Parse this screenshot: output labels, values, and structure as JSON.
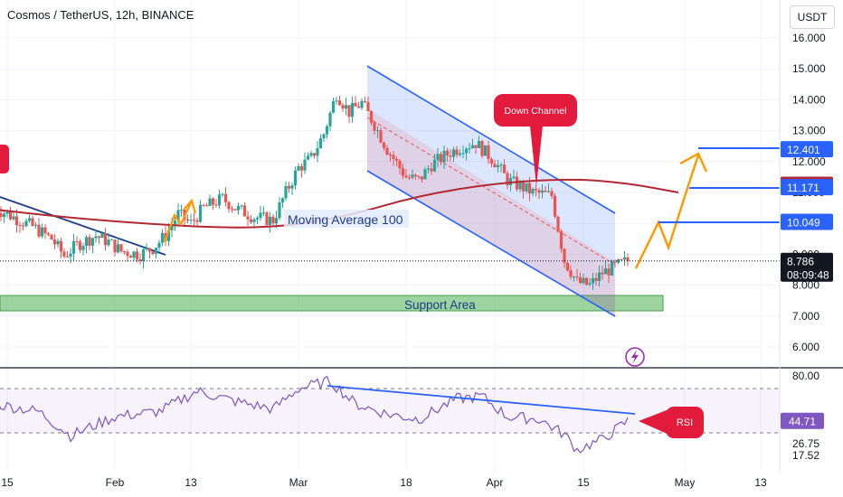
{
  "header": {
    "symbol_title": "Cosmos / TetherUS, 12h, BINANCE",
    "currency_button": "USDT"
  },
  "colors": {
    "up_candle": "#26a69a",
    "down_candle": "#ef5350",
    "moving_average": "#b22833",
    "channel": "#2962ff",
    "projection": "#ff9800",
    "support": "#4caf50",
    "rsi_line": "#7e57c2"
  },
  "annotations": {
    "down_channel_label": "Down Channel",
    "moving_average_label": "Moving Average 100",
    "support_label": "Support Area",
    "rsi_label": "RSI"
  },
  "chart_data": {
    "type": "candlestick",
    "price_axis": {
      "ticks": [
        "6.000",
        "7.000",
        "8.000",
        "9.000",
        "10.000",
        "11.000",
        "12.000",
        "13.000",
        "14.000",
        "15.000",
        "16.000"
      ],
      "tick_values": [
        6,
        7,
        8,
        9,
        10,
        11,
        12,
        13,
        14,
        15,
        16
      ],
      "range": [
        5.3,
        16.4
      ]
    },
    "rsi_axis": {
      "ticks": [
        "17.52",
        "26.75",
        "80.00"
      ],
      "tick_values": [
        17.52,
        26.75,
        80
      ],
      "range": [
        12,
        85
      ],
      "levels": [
        70,
        30
      ]
    },
    "time_axis": {
      "labels": [
        "15",
        "Feb",
        "13",
        "Mar",
        "18",
        "Apr",
        "15",
        "May",
        "13"
      ],
      "dates": [
        "2024-01-15",
        "2024-02-01",
        "2024-02-13",
        "2024-03-01",
        "2024-03-18",
        "2024-04-01",
        "2024-04-15",
        "2024-05-01",
        "2024-05-13"
      ]
    },
    "price_labels": [
      {
        "text": "12.401",
        "value": 12.401,
        "style": "blue"
      },
      {
        "text": "11.247",
        "value": 11.247,
        "style": "red"
      },
      {
        "text": "11.171",
        "value": 11.171,
        "style": "blue"
      },
      {
        "text": "10.049",
        "value": 10.049,
        "style": "blue"
      },
      {
        "text": "8.786",
        "value": 8.786,
        "style": "dark"
      }
    ],
    "countdown": "08:09:48",
    "rsi_label_value": "44.71",
    "candles_close_path": [
      [
        "2024-01-13",
        10.5
      ],
      [
        "2024-01-16",
        10.2
      ],
      [
        "2024-01-19",
        9.9
      ],
      [
        "2024-01-22",
        9.5
      ],
      [
        "2024-01-24",
        8.95
      ],
      [
        "2024-01-26",
        9.3
      ],
      [
        "2024-01-29",
        9.6
      ],
      [
        "2024-01-31",
        9.4
      ],
      [
        "2024-02-02",
        9.1
      ],
      [
        "2024-02-05",
        9.0
      ],
      [
        "2024-02-07",
        9.2
      ],
      [
        "2024-02-09",
        9.6
      ],
      [
        "2024-02-11",
        10.3
      ],
      [
        "2024-02-13",
        10.0
      ],
      [
        "2024-02-15",
        10.5
      ],
      [
        "2024-02-18",
        10.8
      ],
      [
        "2024-02-20",
        10.5
      ],
      [
        "2024-02-23",
        10.2
      ],
      [
        "2024-02-26",
        10.1
      ],
      [
        "2024-02-28",
        11.0
      ],
      [
        "2024-03-01",
        11.8
      ],
      [
        "2024-03-03",
        12.1
      ],
      [
        "2024-03-05",
        12.9
      ],
      [
        "2024-03-07",
        14.2
      ],
      [
        "2024-03-09",
        13.6
      ],
      [
        "2024-03-11",
        13.9
      ],
      [
        "2024-03-13",
        13.2
      ],
      [
        "2024-03-15",
        12.4
      ],
      [
        "2024-03-18",
        11.5
      ],
      [
        "2024-03-20",
        11.4
      ],
      [
        "2024-03-22",
        11.9
      ],
      [
        "2024-03-25",
        12.3
      ],
      [
        "2024-03-27",
        12.5
      ],
      [
        "2024-03-29",
        12.6
      ],
      [
        "2024-04-01",
        12.0
      ],
      [
        "2024-04-03",
        11.4
      ],
      [
        "2024-04-05",
        11.2
      ],
      [
        "2024-04-07",
        11.0
      ],
      [
        "2024-04-10",
        10.9
      ],
      [
        "2024-04-12",
        8.8
      ],
      [
        "2024-04-14",
        8.1
      ],
      [
        "2024-04-16",
        8.0
      ],
      [
        "2024-04-18",
        8.4
      ],
      [
        "2024-04-20",
        8.6
      ],
      [
        "2024-04-22",
        8.79
      ]
    ],
    "moving_average_100": [
      [
        "2024-01-13",
        10.45
      ],
      [
        "2024-01-24",
        10.2
      ],
      [
        "2024-02-05",
        10.0
      ],
      [
        "2024-02-18",
        9.85
      ],
      [
        "2024-02-28",
        9.9
      ],
      [
        "2024-03-09",
        10.25
      ],
      [
        "2024-03-20",
        10.9
      ],
      [
        "2024-04-01",
        11.3
      ],
      [
        "2024-04-13",
        11.45
      ],
      [
        "2024-04-22",
        11.3
      ],
      [
        "2024-04-30",
        11.0
      ]
    ],
    "rsi_series": [
      [
        "2024-01-13",
        58
      ],
      [
        "2024-01-20",
        52
      ],
      [
        "2024-01-25",
        33
      ],
      [
        "2024-02-01",
        48
      ],
      [
        "2024-02-08",
        52
      ],
      [
        "2024-02-14",
        68
      ],
      [
        "2024-02-20",
        60
      ],
      [
        "2024-02-26",
        54
      ],
      [
        "2024-03-01",
        70
      ],
      [
        "2024-03-06",
        76
      ],
      [
        "2024-03-10",
        58
      ],
      [
        "2024-03-15",
        50
      ],
      [
        "2024-03-20",
        46
      ],
      [
        "2024-03-26",
        62
      ],
      [
        "2024-03-30",
        64
      ],
      [
        "2024-04-03",
        48
      ],
      [
        "2024-04-08",
        46
      ],
      [
        "2024-04-12",
        34
      ],
      [
        "2024-04-14",
        22
      ],
      [
        "2024-04-18",
        30
      ],
      [
        "2024-04-22",
        44.7
      ]
    ]
  }
}
